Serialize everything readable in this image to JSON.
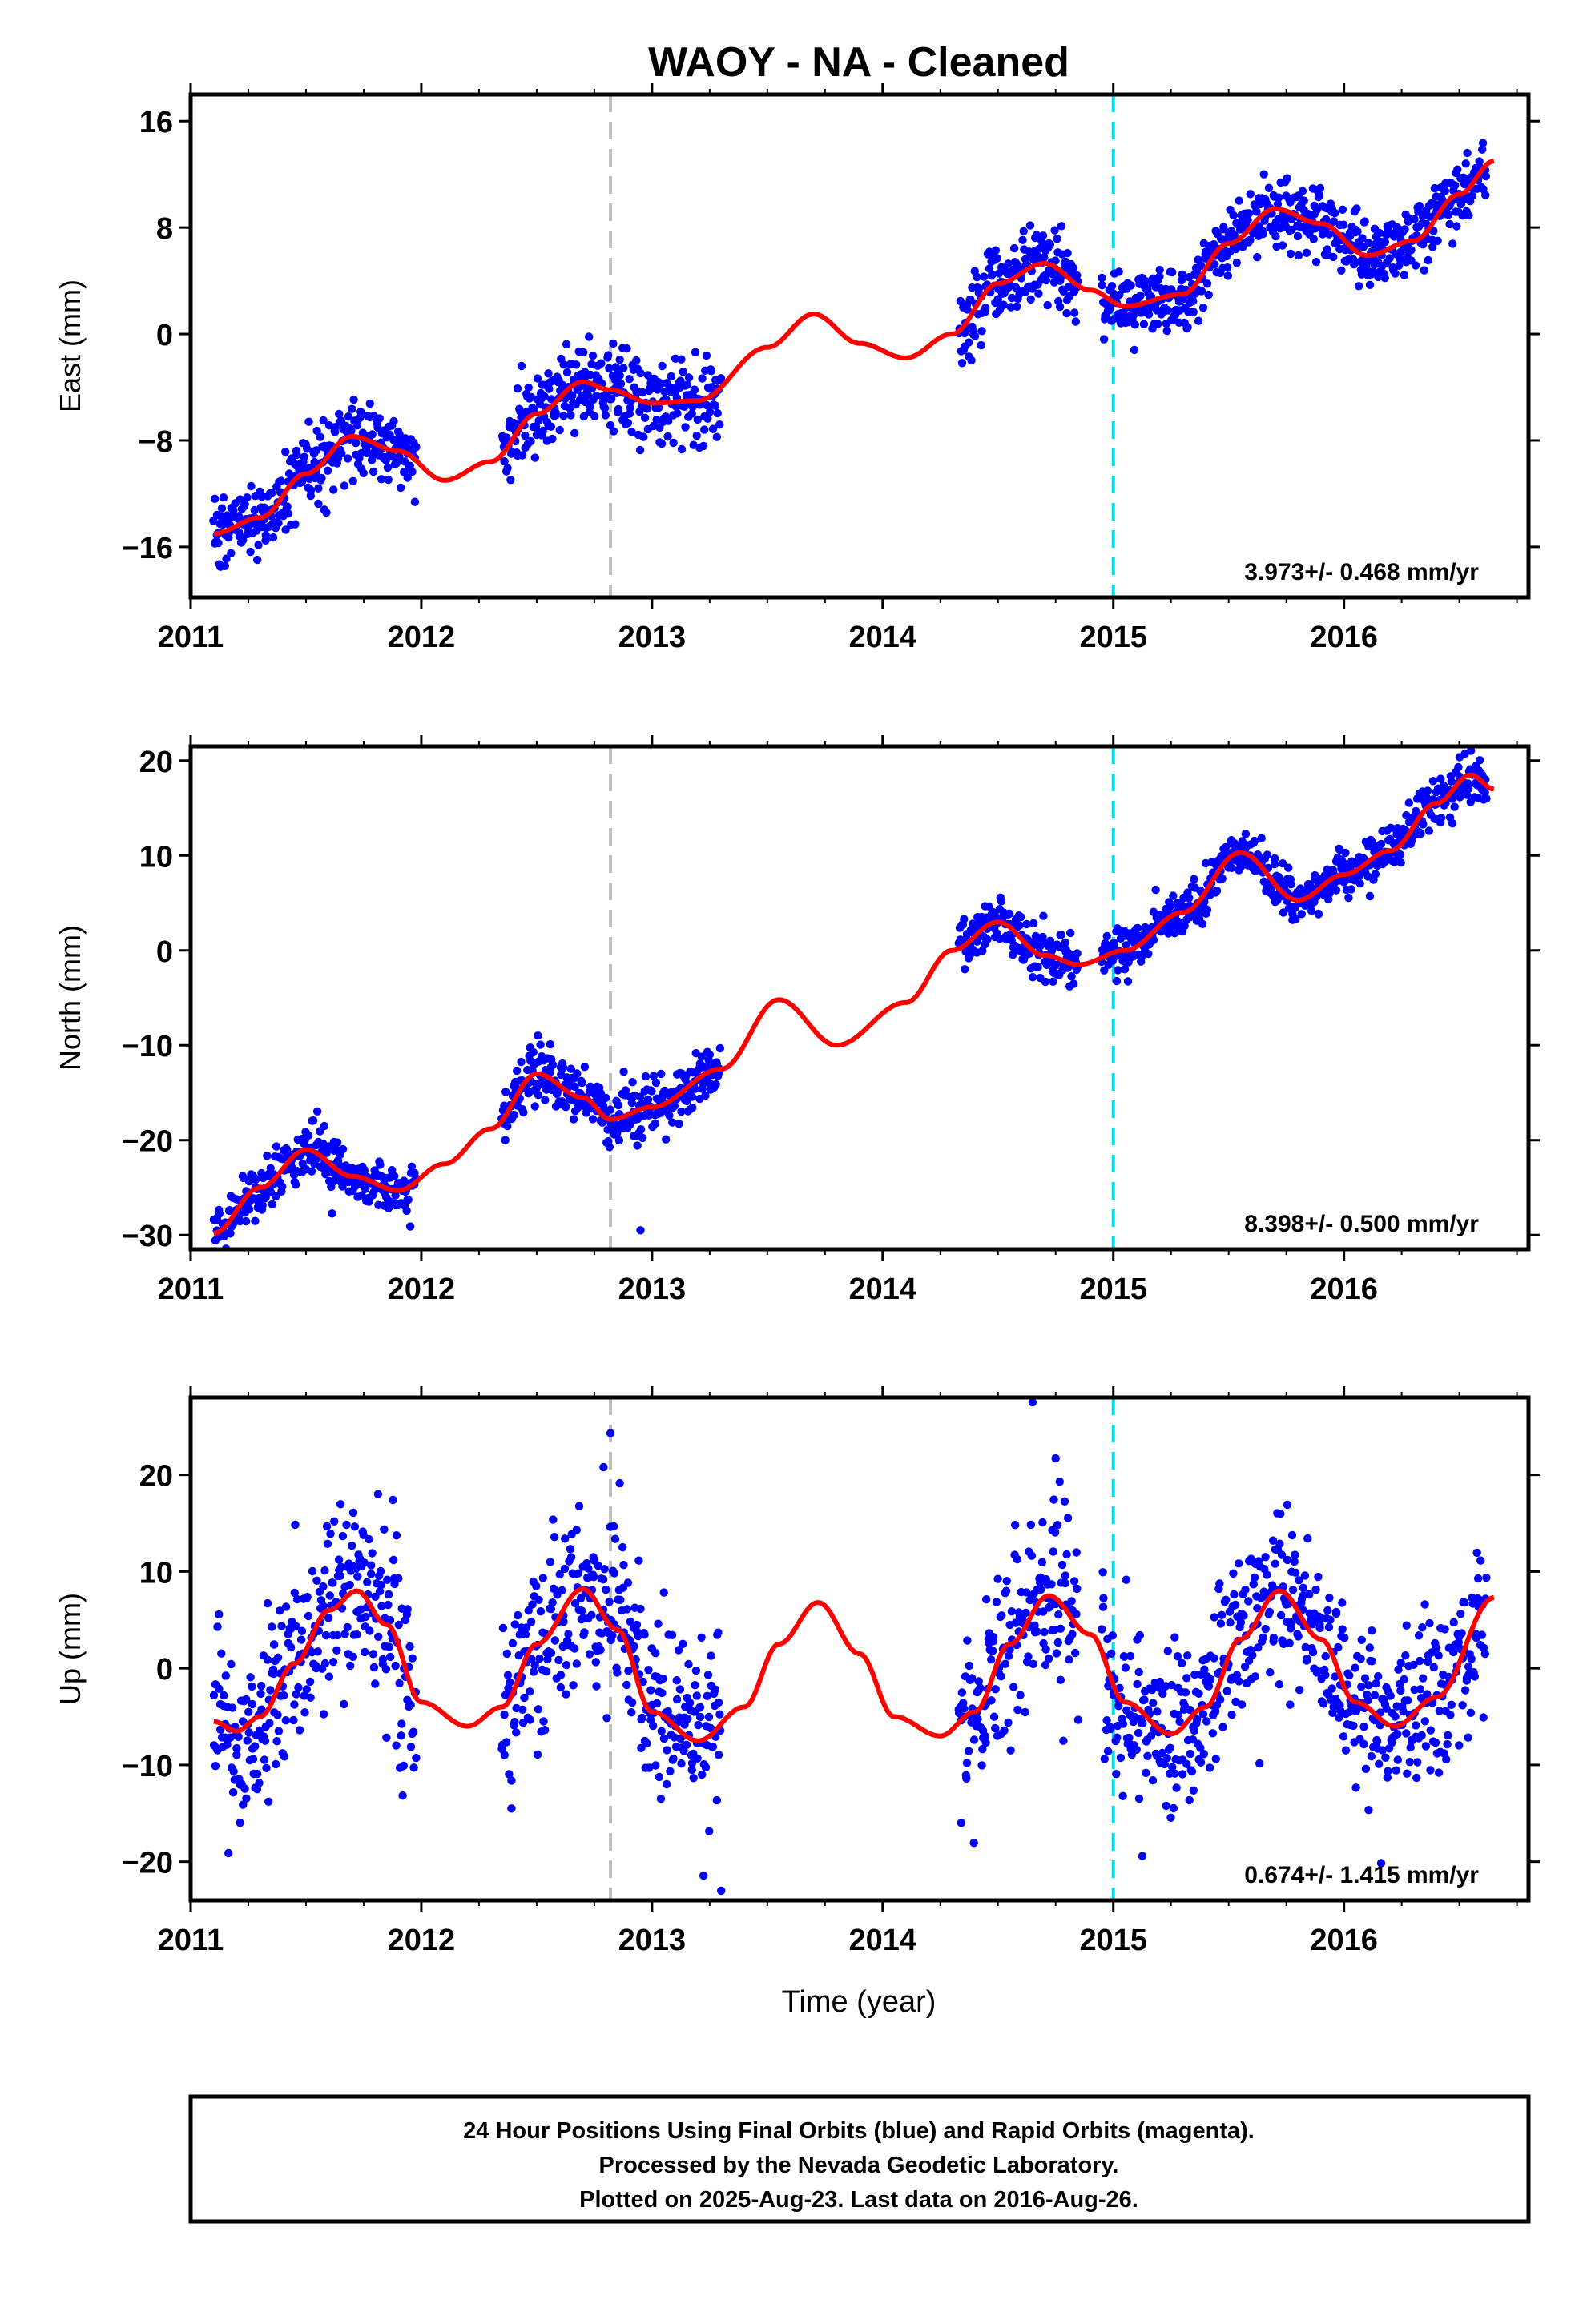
{
  "title": "WAOY  - NA - Cleaned",
  "xlabel": "Time (year)",
  "colors": {
    "points": "#0000ff",
    "fit": "#ff0000",
    "marker_gray": "#c0c0c0",
    "marker_cyan": "#00e0e8"
  },
  "vertical_markers": [
    {
      "x": 2012.82,
      "color": "gray",
      "style": "dashed"
    },
    {
      "x": 2015.0,
      "color": "cyan",
      "style": "dashed"
    }
  ],
  "footer": {
    "lines": [
      "24 Hour Positions Using Final Orbits (blue) and Rapid Orbits (magenta).",
      "Processed by the Nevada Geodetic Laboratory.",
      "Plotted on 2025-Aug-23. Last data on 2016-Aug-26."
    ]
  },
  "chart_data": [
    {
      "type": "scatter",
      "panel": "East",
      "ylabel": "East (mm)",
      "xlim": [
        2011.0,
        2016.8
      ],
      "ylim": [
        -19.8,
        18.0
      ],
      "xticks": [
        2011,
        2012,
        2013,
        2014,
        2015,
        2016
      ],
      "xtick_labels": [
        "2011",
        "2012",
        "2013",
        "2014",
        "2015",
        "2016"
      ],
      "yticks": [
        -16,
        -8,
        0,
        8,
        16
      ],
      "ytick_labels": [
        "−16",
        "−8",
        "0",
        "8",
        "16"
      ],
      "rate_label": "3.973+/- 0.468 mm/yr",
      "fit": {
        "x": [
          2011.1,
          2011.3,
          2011.5,
          2011.7,
          2011.9,
          2012.1,
          2012.3,
          2012.5,
          2012.7,
          2012.82,
          2013.0,
          2013.2,
          2013.5,
          2013.7,
          2013.9,
          2014.1,
          2014.3,
          2014.5,
          2014.7,
          2014.9,
          2015.05,
          2015.3,
          2015.5,
          2015.7,
          2015.9,
          2016.1,
          2016.3,
          2016.5,
          2016.65
        ],
        "y": [
          -15.0,
          -13.8,
          -10.5,
          -7.7,
          -8.8,
          -11.0,
          -9.6,
          -6.0,
          -3.6,
          -4.2,
          -5.2,
          -5.0,
          -1.0,
          1.5,
          -0.7,
          -1.8,
          0.0,
          3.8,
          5.3,
          3.3,
          2.1,
          3.0,
          6.8,
          9.4,
          8.3,
          5.9,
          7.0,
          10.5,
          13.0
        ]
      },
      "points": {
        "segments": [
          {
            "from": 2011.1,
            "to": 2011.98,
            "noise": 1.4
          },
          {
            "from": 2012.35,
            "to": 2013.3,
            "noise": 1.6
          },
          {
            "from": 2014.33,
            "to": 2014.85,
            "noise": 1.6
          },
          {
            "from": 2014.95,
            "to": 2016.62,
            "noise": 1.3
          }
        ],
        "count": 1350
      }
    },
    {
      "type": "scatter",
      "panel": "North",
      "ylabel": "North (mm)",
      "xlim": [
        2011.0,
        2016.8
      ],
      "ylim": [
        -31.5,
        21.5
      ],
      "xticks": [
        2011,
        2012,
        2013,
        2014,
        2015,
        2016
      ],
      "xtick_labels": [
        "2011",
        "2012",
        "2013",
        "2014",
        "2015",
        "2016"
      ],
      "yticks": [
        -30,
        -20,
        -10,
        0,
        10,
        20
      ],
      "ytick_labels": [
        "−30",
        "−20",
        "−10",
        "0",
        "10",
        "20"
      ],
      "rate_label": "8.398+/- 0.500 mm/yr",
      "fit": {
        "x": [
          2011.1,
          2011.3,
          2011.5,
          2011.7,
          2011.9,
          2012.1,
          2012.3,
          2012.5,
          2012.7,
          2012.82,
          2013.0,
          2013.3,
          2013.55,
          2013.8,
          2014.1,
          2014.3,
          2014.5,
          2014.7,
          2014.85,
          2015.05,
          2015.3,
          2015.55,
          2015.8,
          2016.0,
          2016.2,
          2016.4,
          2016.55,
          2016.65
        ],
        "y": [
          -29.8,
          -25.0,
          -21.0,
          -23.8,
          -25.3,
          -22.5,
          -18.8,
          -13.0,
          -15.5,
          -17.8,
          -16.5,
          -12.5,
          -5.2,
          -10.0,
          -5.5,
          0.0,
          3.0,
          -0.5,
          -1.5,
          0.0,
          4.0,
          10.3,
          5.3,
          8.0,
          10.5,
          15.5,
          18.5,
          17.0
        ]
      },
      "points": {
        "segments": [
          {
            "from": 2011.1,
            "to": 2011.98,
            "noise": 1.4
          },
          {
            "from": 2012.35,
            "to": 2013.3,
            "noise": 1.5
          },
          {
            "from": 2014.33,
            "to": 2014.85,
            "noise": 1.4
          },
          {
            "from": 2014.95,
            "to": 2016.62,
            "noise": 1.3
          }
        ],
        "count": 1350,
        "outliers": [
          [
            2012.95,
            -29.5
          ]
        ]
      }
    },
    {
      "type": "scatter",
      "panel": "Up",
      "ylabel": "Up (mm)",
      "xlim": [
        2011.0,
        2016.8
      ],
      "ylim": [
        -24.0,
        28.0
      ],
      "xticks": [
        2011,
        2012,
        2013,
        2014,
        2015,
        2016
      ],
      "xtick_labels": [
        "2011",
        "2012",
        "2013",
        "2014",
        "2015",
        "2016"
      ],
      "yticks": [
        -20,
        -10,
        0,
        10,
        20
      ],
      "ytick_labels": [
        "−20",
        "−10",
        "0",
        "10",
        "20"
      ],
      "rate_label": "0.674+/- 1.415 mm/yr",
      "fit": {
        "x": [
          2011.1,
          2011.2,
          2011.3,
          2011.45,
          2011.6,
          2011.72,
          2011.85,
          2012.0,
          2012.2,
          2012.35,
          2012.5,
          2012.7,
          2012.85,
          2013.0,
          2013.2,
          2013.4,
          2013.55,
          2013.72,
          2013.9,
          2014.05,
          2014.25,
          2014.4,
          2014.55,
          2014.72,
          2014.9,
          2015.05,
          2015.25,
          2015.4,
          2015.55,
          2015.72,
          2015.9,
          2016.05,
          2016.22,
          2016.4,
          2016.65
        ],
        "y": [
          -5.5,
          -6.5,
          -5.0,
          0.5,
          6.0,
          8.0,
          4.5,
          -3.5,
          -6.0,
          -4.0,
          2.5,
          8.2,
          4.0,
          -4.5,
          -7.5,
          -4.0,
          2.5,
          6.8,
          1.5,
          -5.0,
          -7.0,
          -4.5,
          2.5,
          7.5,
          3.5,
          -3.5,
          -6.8,
          -4.0,
          3.0,
          8.0,
          3.0,
          -3.5,
          -6.0,
          -3.0,
          7.3
        ]
      },
      "points": {
        "segments": [
          {
            "from": 2011.1,
            "to": 2011.98,
            "noise": 4.8
          },
          {
            "from": 2012.35,
            "to": 2013.3,
            "noise": 4.8
          },
          {
            "from": 2014.33,
            "to": 2014.85,
            "noise": 4.8
          },
          {
            "from": 2014.95,
            "to": 2016.62,
            "noise": 4.4
          }
        ],
        "count": 1350,
        "outliers": [
          [
            2012.82,
            24.3
          ],
          [
            2014.65,
            27.5
          ],
          [
            2013.3,
            -23.0
          ],
          [
            2012.79,
            20.8
          ],
          [
            2014.75,
            21.7
          ]
        ]
      }
    }
  ]
}
